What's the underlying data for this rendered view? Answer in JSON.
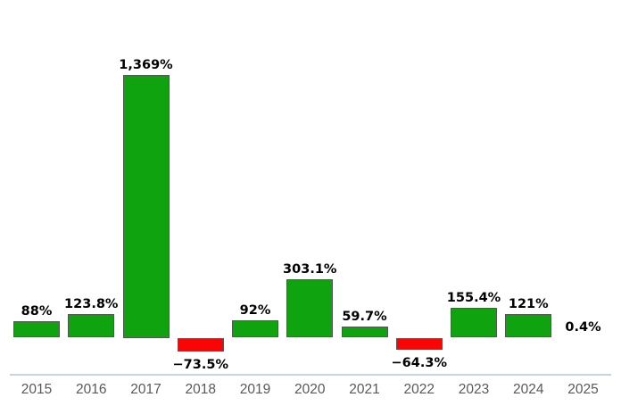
{
  "chart_data": {
    "type": "bar",
    "title": "",
    "xlabel": "",
    "ylabel": "",
    "categories": [
      "2015",
      "2016",
      "2017",
      "2018",
      "2019",
      "2020",
      "2021",
      "2022",
      "2023",
      "2024",
      "2025"
    ],
    "values": [
      88,
      123.8,
      1369,
      -73.5,
      92,
      303.1,
      59.7,
      -64.3,
      155.4,
      121,
      0.4
    ],
    "value_labels": [
      "88%",
      "123.8%",
      "1,369%",
      "−73.5%",
      "92%",
      "303.1%",
      "59.7%",
      "−64.3%",
      "155.4%",
      "121%",
      "0.4%"
    ],
    "unit": "%",
    "grid": false,
    "legend": false,
    "y_axis_visible": false,
    "x_axis_visible": true,
    "colors": {
      "positive_bar": "#0FA30F",
      "negative_bar": "#FA0505",
      "bar_border": "#555555",
      "value_label": "#000000",
      "tick_label": "#595959",
      "axis_line": "#C7D3E2",
      "background": "#FFFFFF"
    }
  }
}
